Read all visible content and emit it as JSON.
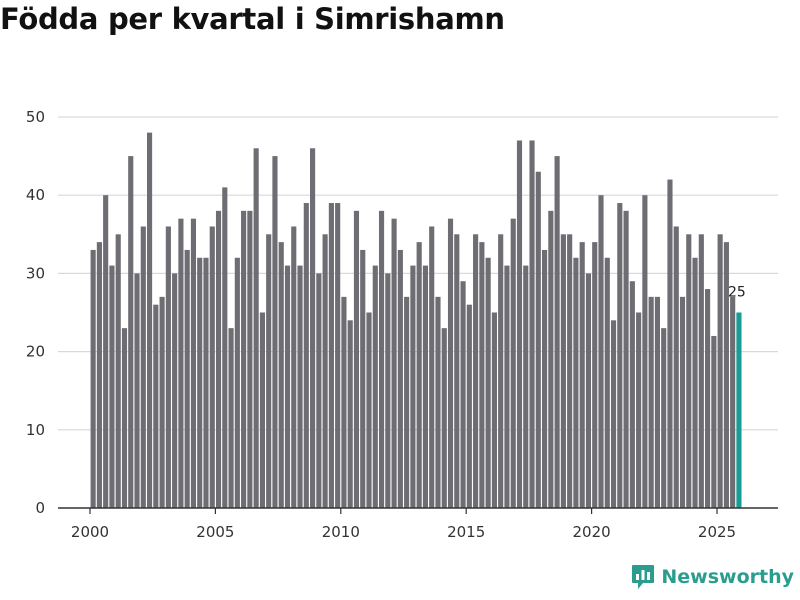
{
  "title": "Födda per kvartal i Simrishamn",
  "brand": {
    "name": "Newsworthy",
    "color": "#2a9d8f",
    "icon": "newsworthy-logo-icon"
  },
  "colors": {
    "bar": "#6e6d73",
    "highlight": "#1a9c96",
    "grid": "#d9d9d9",
    "axis": "#333333"
  },
  "chart_data": {
    "type": "bar",
    "title": "Födda per kvartal i Simrishamn",
    "xlabel": "",
    "ylabel": "",
    "ylim": [
      0,
      50
    ],
    "yticks": [
      0,
      10,
      20,
      30,
      40,
      50
    ],
    "xticks": [
      "2000",
      "2005",
      "2010",
      "2015",
      "2020",
      "2025"
    ],
    "start_year": 2000,
    "start_quarter": 1,
    "values": [
      33,
      34,
      40,
      31,
      35,
      23,
      45,
      30,
      36,
      48,
      26,
      27,
      36,
      30,
      37,
      33,
      37,
      32,
      32,
      36,
      38,
      41,
      23,
      32,
      38,
      38,
      46,
      25,
      35,
      45,
      34,
      31,
      36,
      31,
      39,
      46,
      30,
      35,
      39,
      39,
      27,
      24,
      38,
      33,
      25,
      31,
      38,
      30,
      37,
      33,
      27,
      31,
      34,
      31,
      36,
      27,
      23,
      37,
      35,
      29,
      26,
      35,
      34,
      32,
      25,
      35,
      31,
      37,
      47,
      31,
      47,
      43,
      33,
      38,
      45,
      35,
      35,
      32,
      34,
      30,
      34,
      40,
      32,
      24,
      39,
      38,
      29,
      25,
      40,
      27,
      27,
      23,
      42,
      36,
      27,
      35,
      32,
      35,
      28,
      22,
      35,
      34,
      27,
      25
    ],
    "highlight_last": true,
    "data_labels": [
      {
        "index": 103,
        "text": "25"
      }
    ],
    "grid": true
  }
}
